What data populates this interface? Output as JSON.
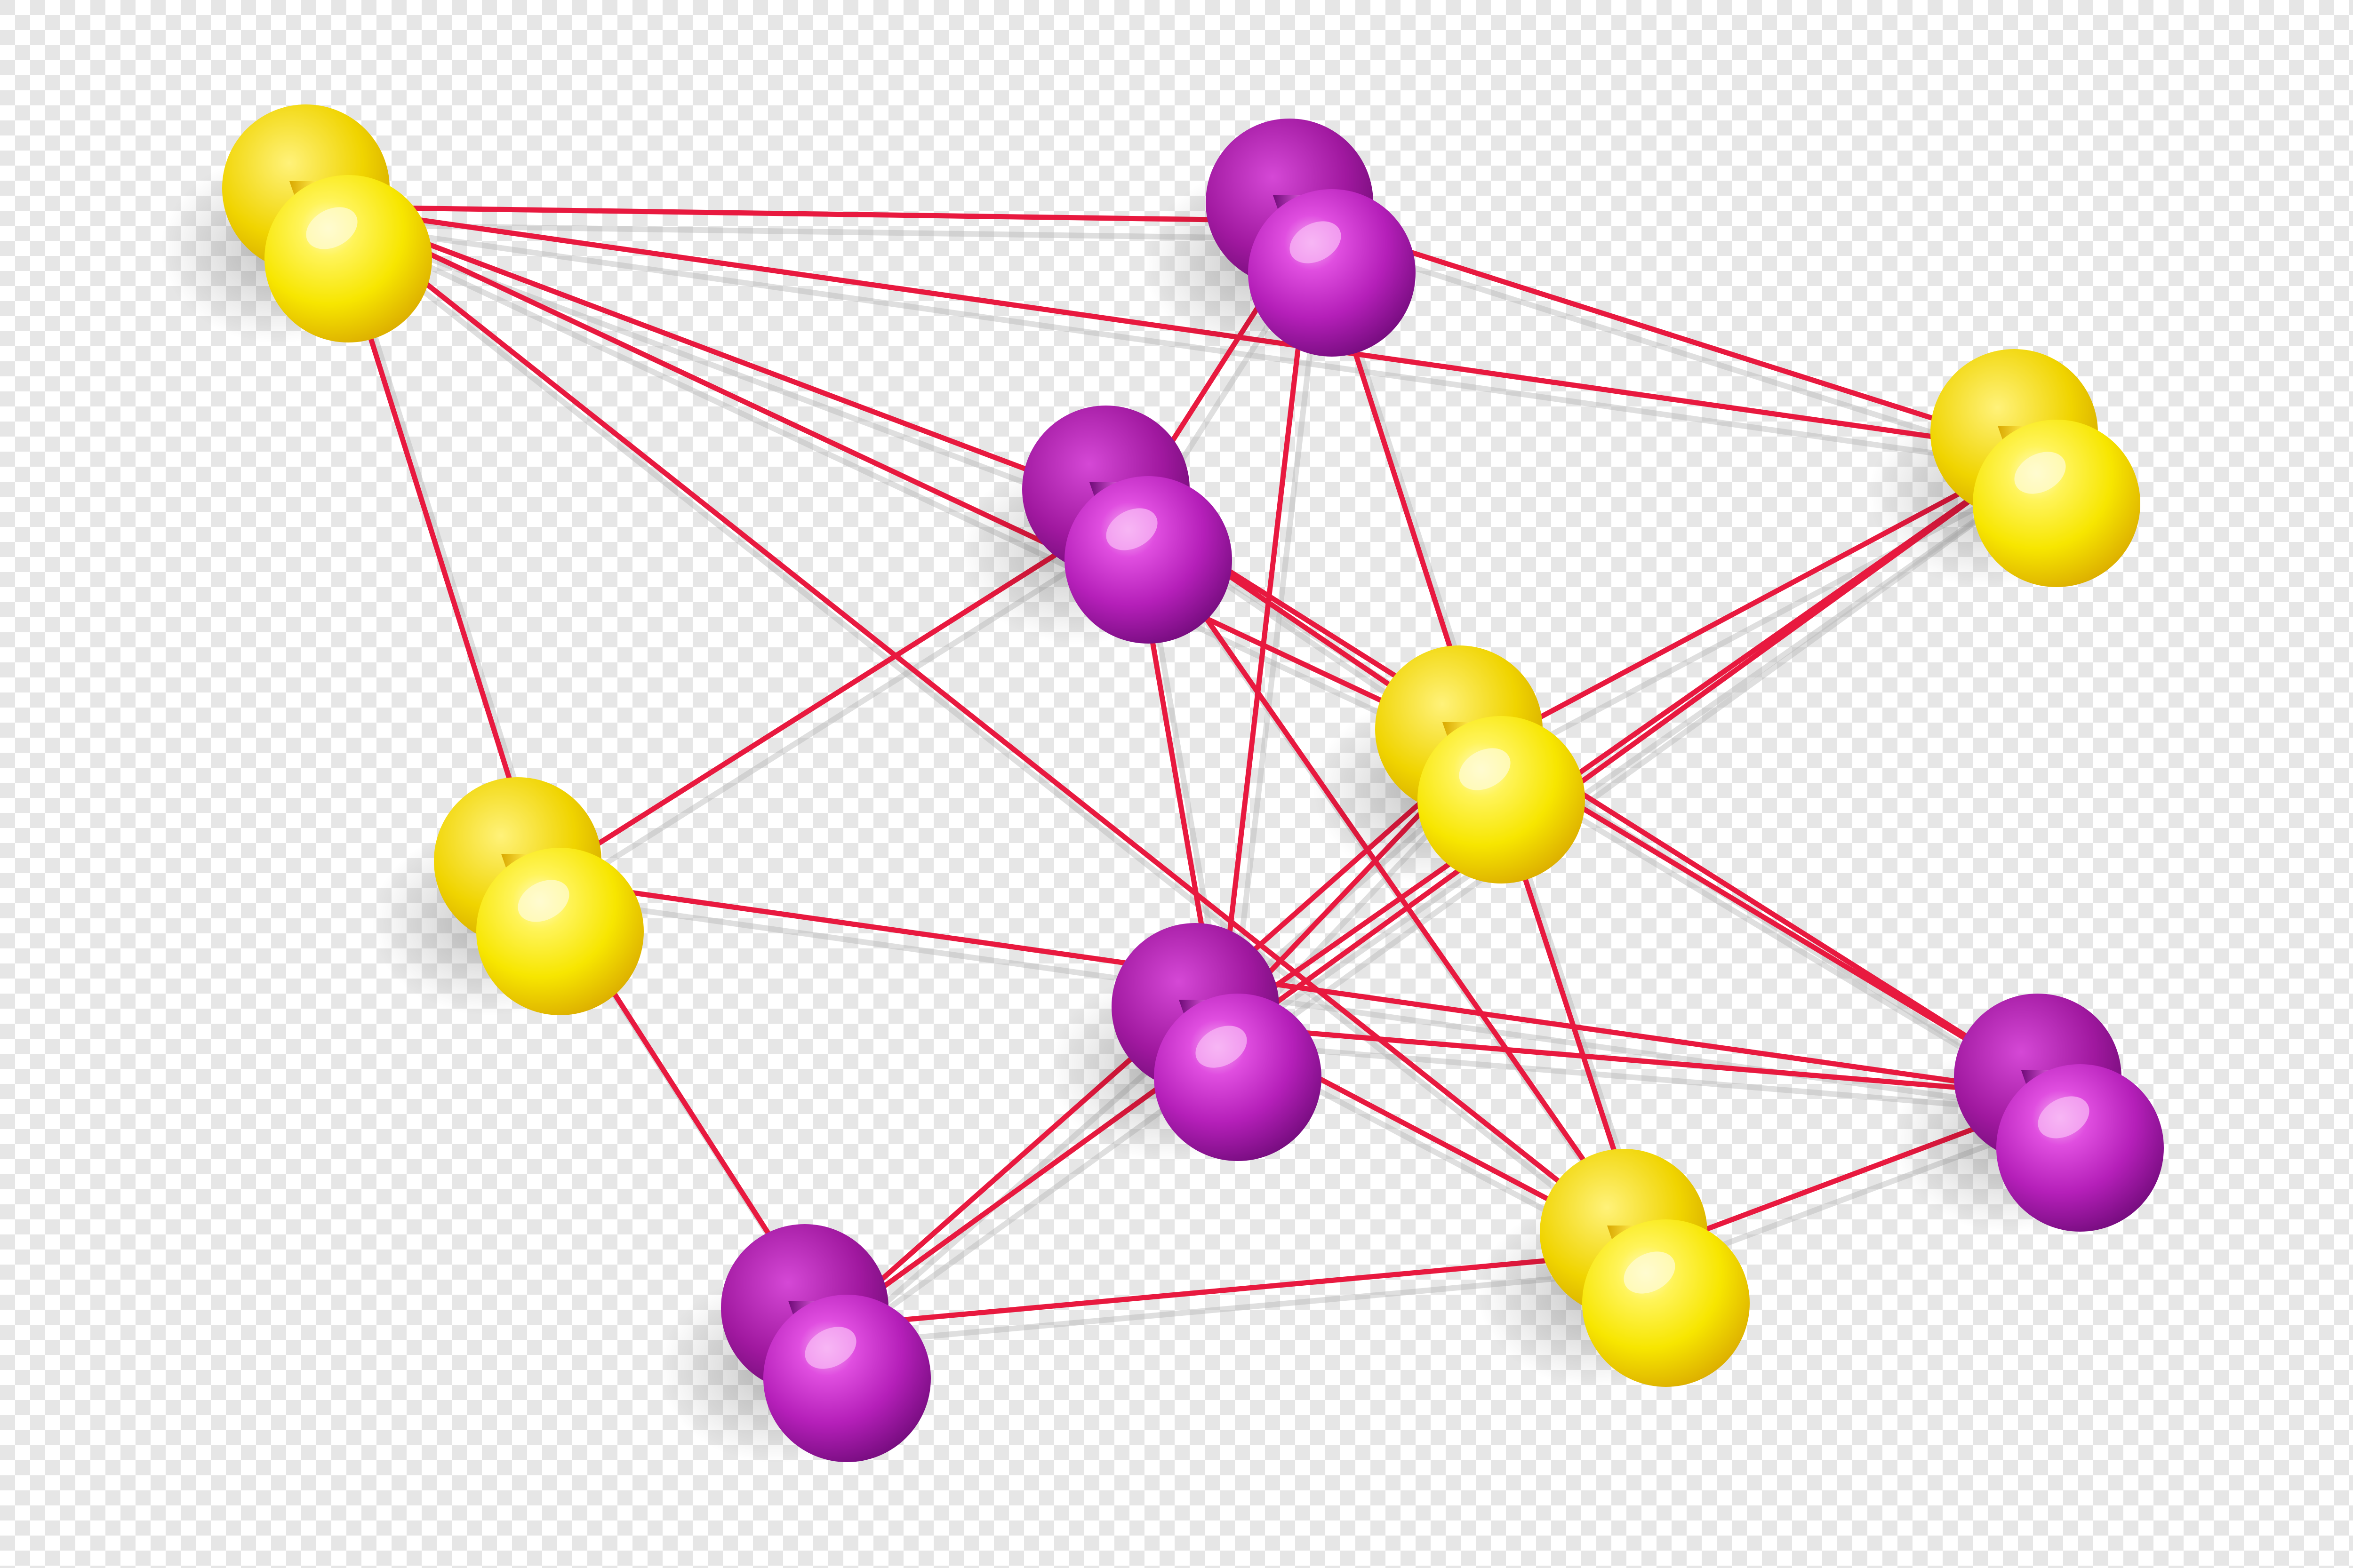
{
  "scene": {
    "description_name": "pushpin-network",
    "colors": {
      "checker_light": "#ffffff",
      "checker_dark": "#e6e6e6",
      "string": "#e8193f",
      "string_shadow": "#b9b9b9",
      "yellow_pin": "#f7e600",
      "yellow_pin_dark": "#d9a800",
      "yellow_pin_light": "#fffbd0",
      "purple_pin": "#b51fb9",
      "purple_pin_dark": "#6f0a78",
      "purple_pin_light": "#f7b6f4"
    },
    "pins": [
      {
        "id": "y1",
        "color": "yellow"
      },
      {
        "id": "p1",
        "color": "purple"
      },
      {
        "id": "p2",
        "color": "purple"
      },
      {
        "id": "y2",
        "color": "yellow"
      },
      {
        "id": "y3",
        "color": "yellow"
      },
      {
        "id": "y4",
        "color": "yellow"
      },
      {
        "id": "p3",
        "color": "purple"
      },
      {
        "id": "p4",
        "color": "purple"
      },
      {
        "id": "p5",
        "color": "purple"
      },
      {
        "id": "y5",
        "color": "yellow"
      }
    ],
    "connections": [
      [
        "y1",
        "p1"
      ],
      [
        "y1",
        "y2"
      ],
      [
        "y1",
        "y3"
      ],
      [
        "y1",
        "y4"
      ],
      [
        "y1",
        "p2"
      ],
      [
        "y1",
        "y5"
      ],
      [
        "p1",
        "y2"
      ],
      [
        "p1",
        "p2"
      ],
      [
        "p1",
        "p3"
      ],
      [
        "p1",
        "y4"
      ],
      [
        "p2",
        "y3"
      ],
      [
        "p2",
        "p5"
      ],
      [
        "p2",
        "p3"
      ],
      [
        "p2",
        "y5"
      ],
      [
        "p2",
        "y4"
      ],
      [
        "y2",
        "y4"
      ],
      [
        "y2",
        "p3"
      ],
      [
        "y2",
        "p4"
      ],
      [
        "y4",
        "p4"
      ],
      [
        "y4",
        "p5"
      ],
      [
        "y4",
        "p3"
      ],
      [
        "y4",
        "y5"
      ],
      [
        "y3",
        "p5"
      ],
      [
        "y3",
        "p4"
      ],
      [
        "p3",
        "p5"
      ],
      [
        "p3",
        "y5"
      ],
      [
        "p5",
        "y5"
      ],
      [
        "p4",
        "y5"
      ]
    ]
  }
}
